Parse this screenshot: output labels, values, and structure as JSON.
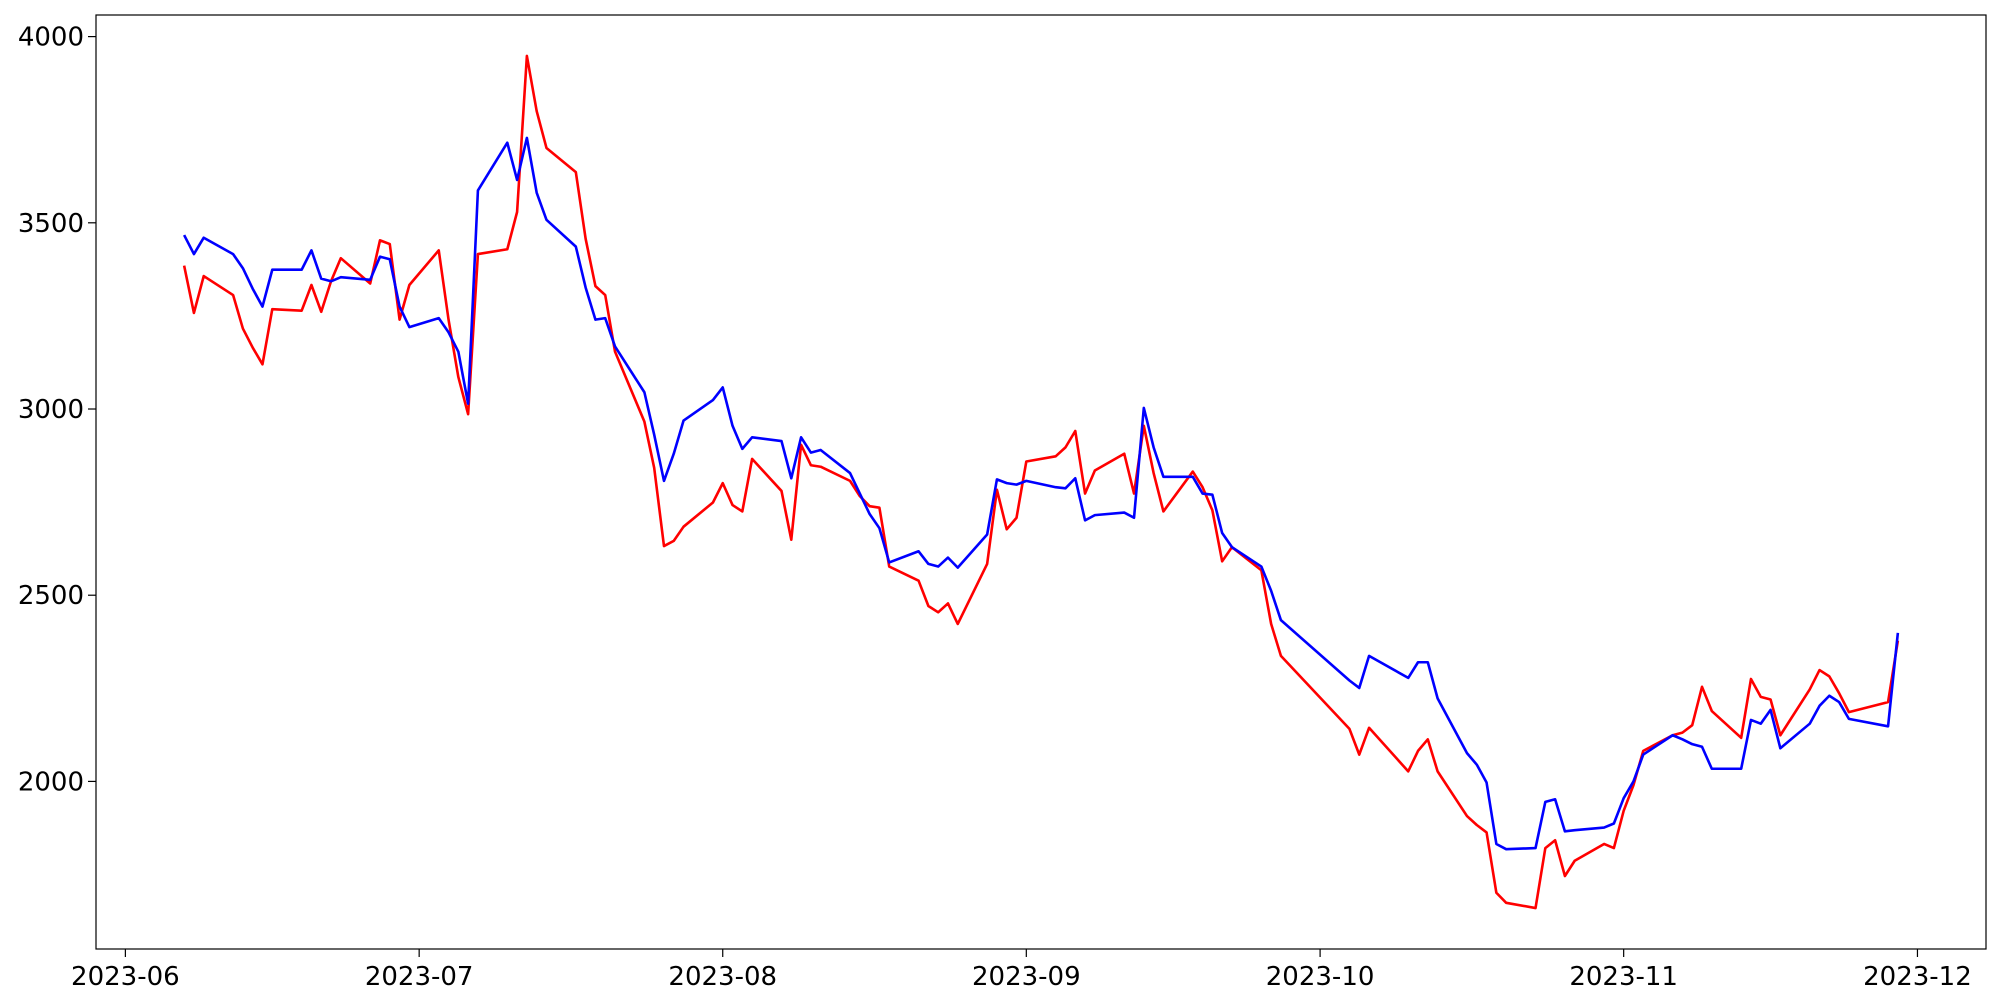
{
  "chart_data": {
    "type": "line",
    "x": [
      "2023-06-07",
      "2023-06-08",
      "2023-06-09",
      "2023-06-12",
      "2023-06-13",
      "2023-06-14",
      "2023-06-15",
      "2023-06-16",
      "2023-06-19",
      "2023-06-20",
      "2023-06-21",
      "2023-06-22",
      "2023-06-23",
      "2023-06-26",
      "2023-06-27",
      "2023-06-28",
      "2023-06-29",
      "2023-06-30",
      "2023-07-03",
      "2023-07-04",
      "2023-07-05",
      "2023-07-06",
      "2023-07-07",
      "2023-07-10",
      "2023-07-11",
      "2023-07-12",
      "2023-07-13",
      "2023-07-14",
      "2023-07-17",
      "2023-07-18",
      "2023-07-19",
      "2023-07-20",
      "2023-07-21",
      "2023-07-24",
      "2023-07-25",
      "2023-07-26",
      "2023-07-27",
      "2023-07-28",
      "2023-07-31",
      "2023-08-01",
      "2023-08-02",
      "2023-08-03",
      "2023-08-04",
      "2023-08-07",
      "2023-08-08",
      "2023-08-09",
      "2023-08-10",
      "2023-08-11",
      "2023-08-14",
      "2023-08-15",
      "2023-08-16",
      "2023-08-17",
      "2023-08-18",
      "2023-08-21",
      "2023-08-22",
      "2023-08-23",
      "2023-08-24",
      "2023-08-25",
      "2023-08-28",
      "2023-08-29",
      "2023-08-30",
      "2023-08-31",
      "2023-09-01",
      "2023-09-04",
      "2023-09-05",
      "2023-09-06",
      "2023-09-07",
      "2023-09-08",
      "2023-09-11",
      "2023-09-12",
      "2023-09-13",
      "2023-09-14",
      "2023-09-15",
      "2023-09-18",
      "2023-09-19",
      "2023-09-20",
      "2023-09-21",
      "2023-09-22",
      "2023-09-25",
      "2023-09-26",
      "2023-09-27",
      "2023-10-04",
      "2023-10-05",
      "2023-10-06",
      "2023-10-10",
      "2023-10-11",
      "2023-10-12",
      "2023-10-13",
      "2023-10-16",
      "2023-10-17",
      "2023-10-18",
      "2023-10-19",
      "2023-10-20",
      "2023-10-23",
      "2023-10-24",
      "2023-10-25",
      "2023-10-26",
      "2023-10-27",
      "2023-10-30",
      "2023-10-31",
      "2023-11-01",
      "2023-11-02",
      "2023-11-03",
      "2023-11-06",
      "2023-11-07",
      "2023-11-08",
      "2023-11-09",
      "2023-11-10",
      "2023-11-13",
      "2023-11-14",
      "2023-11-15",
      "2023-11-16",
      "2023-11-17",
      "2023-11-20",
      "2023-11-21",
      "2023-11-22",
      "2023-11-23",
      "2023-11-24",
      "2023-11-28",
      "2023-11-29"
    ],
    "series": [
      {
        "color": "#ff0000",
        "values": [
          3385,
          3258,
          3357,
          3306,
          3216,
          3165,
          3120,
          3268,
          3264,
          3333,
          3261,
          3343,
          3405,
          3337,
          3453,
          3443,
          3240,
          3333,
          3426,
          3240,
          3086,
          2986,
          3416,
          3429,
          3529,
          3948,
          3800,
          3701,
          3636,
          3457,
          3330,
          3306,
          3154,
          2966,
          2842,
          2632,
          2646,
          2684,
          2749,
          2801,
          2742,
          2725,
          2866,
          2780,
          2649,
          2904,
          2849,
          2845,
          2807,
          2766,
          2739,
          2735,
          2577,
          2539,
          2471,
          2454,
          2478,
          2423,
          2584,
          2783,
          2677,
          2708,
          2859,
          2873,
          2897,
          2941,
          2773,
          2835,
          2880,
          2773,
          2955,
          2828,
          2725,
          2832,
          2790,
          2728,
          2591,
          2629,
          2567,
          2423,
          2337,
          2141,
          2072,
          2144,
          2027,
          2082,
          2113,
          2027,
          1907,
          1883,
          1863,
          1701,
          1674,
          1660,
          1821,
          1842,
          1746,
          1787,
          1832,
          1821,
          1921,
          1990,
          2082,
          2124,
          2131,
          2151,
          2254,
          2189,
          2117,
          2275,
          2227,
          2220,
          2124,
          2247,
          2299,
          2282,
          2237,
          2186,
          2213,
          2378
        ]
      },
      {
        "color": "#0000ff",
        "values": [
          3467,
          3416,
          3460,
          3416,
          3378,
          3323,
          3275,
          3374,
          3374,
          3426,
          3350,
          3343,
          3354,
          3347,
          3409,
          3402,
          3275,
          3220,
          3244,
          3206,
          3154,
          3014,
          3587,
          3715,
          3615,
          3728,
          3581,
          3508,
          3436,
          3326,
          3240,
          3244,
          3168,
          3045,
          2931,
          2807,
          2880,
          2969,
          3024,
          3058,
          2955,
          2893,
          2924,
          2914,
          2814,
          2924,
          2883,
          2890,
          2828,
          2773,
          2718,
          2680,
          2588,
          2618,
          2584,
          2577,
          2601,
          2574,
          2663,
          2811,
          2801,
          2797,
          2807,
          2790,
          2787,
          2814,
          2701,
          2715,
          2722,
          2708,
          3003,
          2897,
          2818,
          2818,
          2773,
          2770,
          2667,
          2629,
          2577,
          2512,
          2433,
          2271,
          2251,
          2337,
          2278,
          2320,
          2320,
          2223,
          2076,
          2045,
          1997,
          1832,
          1818,
          1821,
          1945,
          1952,
          1866,
          1869,
          1876,
          1887,
          1955,
          2000,
          2072,
          2124,
          2113,
          2100,
          2093,
          2034,
          2034,
          2165,
          2155,
          2192,
          2089,
          2155,
          2203,
          2230,
          2213,
          2168,
          2148,
          2399
        ]
      }
    ],
    "xlim": [
      "2023-05-29",
      "2023-12-08"
    ],
    "xticks": [
      {
        "value": "2023-06-01",
        "label": "2023-06"
      },
      {
        "value": "2023-07-01",
        "label": "2023-07"
      },
      {
        "value": "2023-08-01",
        "label": "2023-08"
      },
      {
        "value": "2023-09-01",
        "label": "2023-09"
      },
      {
        "value": "2023-10-01",
        "label": "2023-10"
      },
      {
        "value": "2023-11-01",
        "label": "2023-11"
      },
      {
        "value": "2023-12-01",
        "label": "2023-12"
      }
    ],
    "ylim": [
      1550,
      4058
    ],
    "yticks": [
      2000,
      2500,
      3000,
      3500,
      4000
    ],
    "grid": false
  }
}
